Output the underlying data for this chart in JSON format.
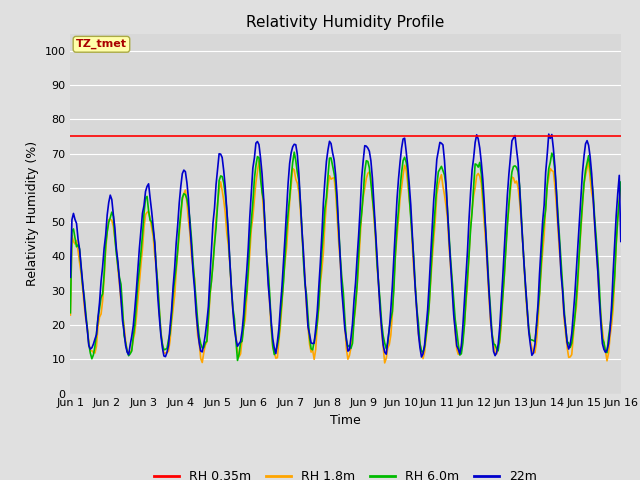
{
  "title": "Relativity Humidity Profile",
  "xlabel": "Time",
  "ylabel": "Relativity Humidity (%)",
  "ylim": [
    0,
    105
  ],
  "yticks": [
    0,
    10,
    20,
    30,
    40,
    50,
    60,
    70,
    80,
    90,
    100
  ],
  "background_color": "#e0e0e0",
  "plot_bg_color": "#d8d8d8",
  "grid_color": "white",
  "colors": {
    "RH 0.35m": "#ff0000",
    "RH 1.8m": "#ffa500",
    "RH 6.0m": "#00bb00",
    "22m": "#0000cc"
  },
  "x_tick_labels": [
    "Jun 1",
    "Jun 2",
    "Jun 3",
    "Jun 4",
    "Jun 5",
    "Jun 6",
    "Jun 7",
    "Jun 8",
    "Jun 9",
    "Jun 10",
    "Jun 11",
    "Jun 12",
    "Jun 13",
    "Jun 14",
    "Jun 15",
    "Jun 16"
  ],
  "annotation_text": "TZ_tmet",
  "linewidth": 1.2
}
